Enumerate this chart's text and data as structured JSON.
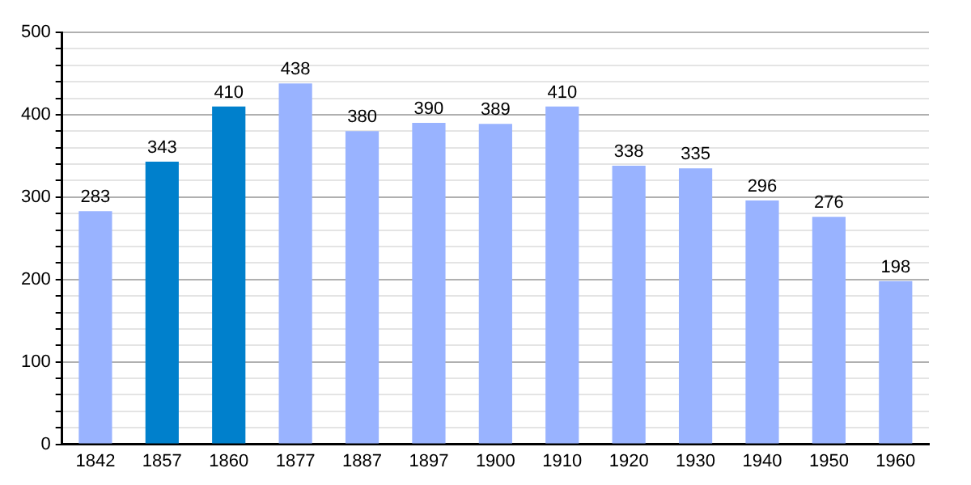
{
  "chart_data": {
    "type": "bar",
    "categories": [
      "1842",
      "1857",
      "1860",
      "1877",
      "1887",
      "1897",
      "1900",
      "1910",
      "1920",
      "1930",
      "1940",
      "1950",
      "1960"
    ],
    "values": [
      283,
      343,
      410,
      438,
      380,
      390,
      389,
      410,
      338,
      335,
      296,
      276,
      198
    ],
    "colors": [
      "#99b3ff",
      "#0080cc",
      "#0080cc",
      "#99b3ff",
      "#99b3ff",
      "#99b3ff",
      "#99b3ff",
      "#99b3ff",
      "#99b3ff",
      "#99b3ff",
      "#99b3ff",
      "#99b3ff",
      "#99b3ff"
    ],
    "ylim": [
      0,
      500
    ],
    "yticks": [
      0,
      {
        "value": 20,
        "label": null
      },
      {
        "value": 40,
        "label": null
      },
      {
        "value": 60,
        "label": null
      },
      {
        "value": 80,
        "label": null
      },
      100,
      {
        "value": 120,
        "label": null
      },
      {
        "value": 140,
        "label": null
      },
      {
        "value": 160,
        "label": null
      },
      {
        "value": 180,
        "label": null
      },
      200,
      {
        "value": 220,
        "label": null
      },
      {
        "value": 240,
        "label": null
      },
      {
        "value": 260,
        "label": null
      },
      {
        "value": 280,
        "label": null
      },
      300,
      {
        "value": 320,
        "label": null
      },
      {
        "value": 340,
        "label": null
      },
      {
        "value": 360,
        "label": null
      },
      {
        "value": 380,
        "label": null
      },
      400,
      {
        "value": 420,
        "label": null
      },
      {
        "value": 440,
        "label": null
      },
      {
        "value": 460,
        "label": null
      },
      {
        "value": 480,
        "label": null
      },
      500
    ],
    "grid": true,
    "data_labels": true,
    "legend": false
  }
}
